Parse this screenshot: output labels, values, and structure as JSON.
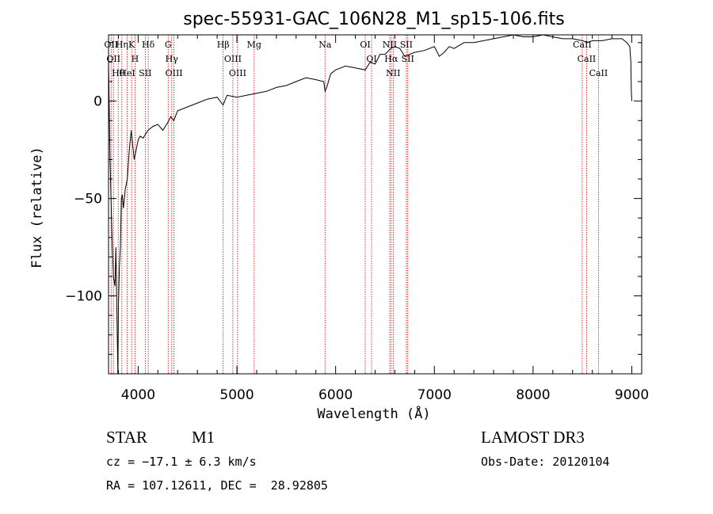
{
  "chart_data": {
    "type": "line",
    "title": "spec-55931-GAC_106N28_M1_sp15-106.fits",
    "xlabel": "Wavelength (Å)",
    "ylabel": "Flux (relative)",
    "xlim": [
      3700,
      9100
    ],
    "ylim": [
      -140,
      34
    ],
    "xticks": [
      4000,
      5000,
      6000,
      7000,
      8000,
      9000
    ],
    "yticks": [
      0,
      -50,
      -100
    ],
    "series": [
      {
        "name": "spectrum",
        "x": [
          3700,
          3715,
          3735,
          3750,
          3765,
          3775,
          3785,
          3795,
          3800,
          3810,
          3820,
          3830,
          3840,
          3850,
          3870,
          3890,
          3910,
          3930,
          3940,
          3960,
          3980,
          4000,
          4020,
          4050,
          4100,
          4150,
          4200,
          4250,
          4300,
          4330,
          4360,
          4400,
          4500,
          4600,
          4700,
          4800,
          4860,
          4900,
          5000,
          5100,
          5200,
          5300,
          5400,
          5500,
          5600,
          5700,
          5800,
          5880,
          5893,
          5910,
          5950,
          6000,
          6100,
          6200,
          6300,
          6350,
          6400,
          6450,
          6500,
          6560,
          6600,
          6650,
          6700,
          6800,
          6900,
          7000,
          7050,
          7100,
          7150,
          7200,
          7300,
          7400,
          7500,
          7600,
          7700,
          7800,
          7900,
          8000,
          8100,
          8200,
          8300,
          8400,
          8500,
          8550,
          8600,
          8700,
          8800,
          8900,
          8950,
          8980,
          8990,
          8995,
          9000
        ],
        "y": [
          20,
          -30,
          -70,
          -90,
          -95,
          -75,
          -110,
          -140,
          -105,
          -85,
          -75,
          -50,
          -48,
          -55,
          -45,
          -40,
          -25,
          -15,
          -20,
          -30,
          -25,
          -20,
          -18,
          -19,
          -15,
          -13,
          -12,
          -15,
          -11,
          -8,
          -10,
          -5,
          -3,
          -1,
          1,
          2,
          -2,
          3,
          2,
          3,
          4,
          5,
          7,
          8,
          10,
          12,
          11,
          10,
          5,
          7,
          14,
          16,
          18,
          17,
          16,
          20,
          19,
          24,
          24,
          27,
          28,
          27,
          23,
          25,
          26,
          28,
          23,
          25,
          28,
          27,
          30,
          30,
          31,
          32,
          33,
          34,
          33,
          33,
          34,
          33,
          32,
          32,
          31,
          30,
          31,
          31,
          32,
          32,
          30,
          28,
          20,
          5,
          0
        ]
      }
    ],
    "line_markers": [
      {
        "wavelength": 3726,
        "label": "OII"
      },
      {
        "wavelength": 3750,
        "label": "OII"
      },
      {
        "wavelength": 3798,
        "label": "Hθ"
      },
      {
        "wavelength": 3835,
        "label": "Hη"
      },
      {
        "wavelength": 3889,
        "label": "HeI"
      },
      {
        "wavelength": 3934,
        "label": "K"
      },
      {
        "wavelength": 3968,
        "label": "H"
      },
      {
        "wavelength": 4072,
        "label": "SII"
      },
      {
        "wavelength": 4102,
        "label": "Hδ"
      },
      {
        "wavelength": 4304,
        "label": "G"
      },
      {
        "wavelength": 4340,
        "label": "Hγ"
      },
      {
        "wavelength": 4363,
        "label": "OIII"
      },
      {
        "wavelength": 4861,
        "label": "Hβ"
      },
      {
        "wavelength": 4959,
        "label": "OIII"
      },
      {
        "wavelength": 5007,
        "label": "OIII"
      },
      {
        "wavelength": 5175,
        "label": "Mg"
      },
      {
        "wavelength": 5893,
        "label": "Na"
      },
      {
        "wavelength": 6300,
        "label": "OI"
      },
      {
        "wavelength": 6364,
        "label": "OI"
      },
      {
        "wavelength": 6548,
        "label": "NII"
      },
      {
        "wavelength": 6563,
        "label": "Hα"
      },
      {
        "wavelength": 6583,
        "label": "NII"
      },
      {
        "wavelength": 6716,
        "label": "SII"
      },
      {
        "wavelength": 6731,
        "label": "SII"
      },
      {
        "wavelength": 8498,
        "label": "CaII"
      },
      {
        "wavelength": 8542,
        "label": "CaII"
      },
      {
        "wavelength": 8662,
        "label": "CaII"
      }
    ]
  },
  "footer": {
    "object_class": "STAR",
    "subclass": "M1",
    "cz": "cz = −17.1 ± 6.3 km/s",
    "coords": "RA = 107.12611, DEC =  28.92805",
    "survey": "LAMOST DR3",
    "obs_date": "Obs-Date: 20120104"
  },
  "colors": {
    "spectrum": "#000000",
    "marker": "#cc0000",
    "axis": "#000000"
  }
}
